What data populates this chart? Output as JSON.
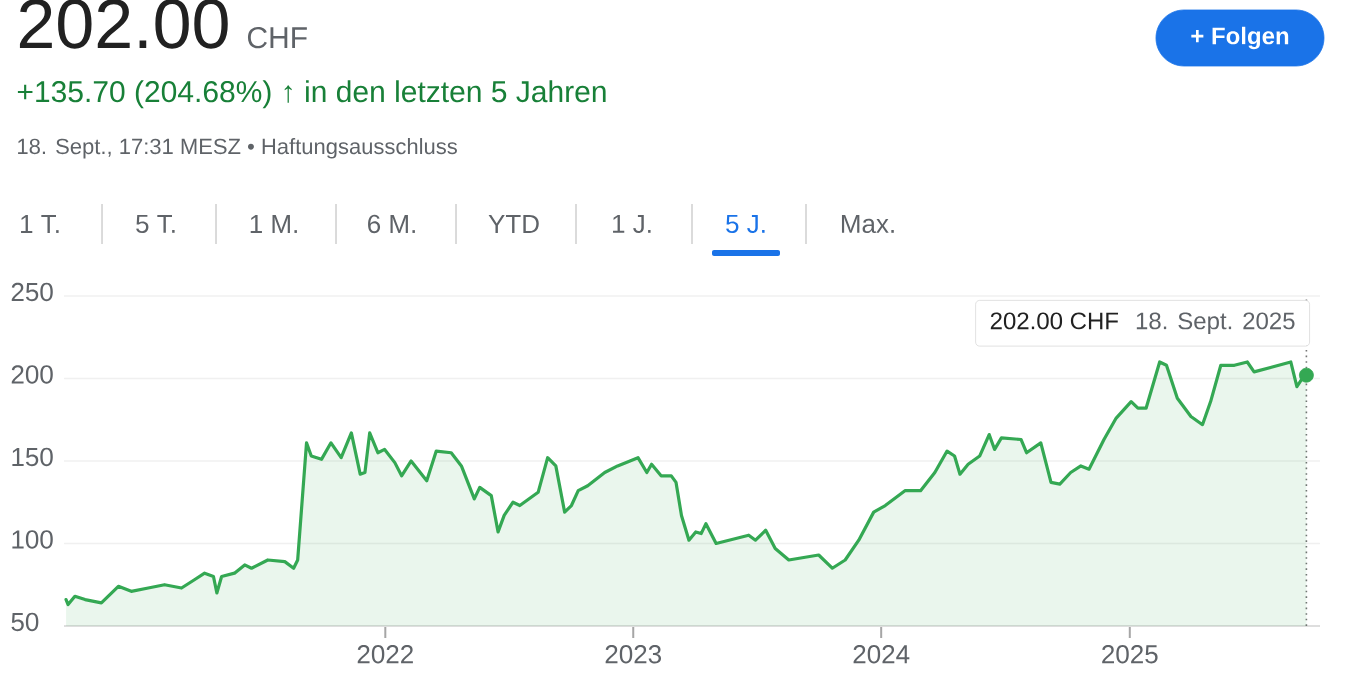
{
  "chart_data": {
    "type": "area",
    "title": "202.00",
    "subtitle": "+135.70 (204.68%) ↑ in den letzten 5 Jahren",
    "annotations": [
      "CHF",
      "18. Sept., 17:31 MESZ • Haftungsausschluss",
      "+ Folgen",
      "1 T.",
      "5 T.",
      "1 M.",
      "6 M.",
      "YTD",
      "1 J.",
      "5 J.",
      "Max.",
      "202.00 CHF",
      "18. Sept. 2025"
    ],
    "series": [
      {
        "color": "#34a853",
        "x": [
          "2020-09-18",
          "2020-09-21",
          "2020-10-01",
          "2020-10-16",
          "2020-11-09",
          "2020-12-04",
          "2020-12-23",
          "2021-01-17",
          "2021-02-10",
          "2021-03-07",
          "2021-03-26",
          "2021-04-10",
          "2021-04-23",
          "2021-04-28",
          "2021-05-05",
          "2021-05-24",
          "2021-06-08",
          "2021-06-18",
          "2021-07-12",
          "2021-08-06",
          "2021-08-19",
          "2021-08-25",
          "2021-09-07",
          "2021-09-14",
          "2021-09-29",
          "2021-10-13",
          "2021-10-28",
          "2021-11-12",
          "2021-11-25",
          "2021-12-02",
          "2021-12-09",
          "2021-12-21",
          "2021-12-31",
          "2022-01-15",
          "2022-01-25",
          "2022-02-08",
          "2022-03-03",
          "2022-03-17",
          "2022-04-08",
          "2022-04-23",
          "2022-05-12",
          "2022-05-20",
          "2022-06-06",
          "2022-06-16",
          "2022-06-25",
          "2022-07-08",
          "2022-07-18",
          "2022-08-14",
          "2022-08-28",
          "2022-09-09",
          "2022-09-22",
          "2022-10-02",
          "2022-10-12",
          "2022-10-26",
          "2022-11-20",
          "2022-12-09",
          "2023-01-08",
          "2023-01-21",
          "2023-01-28",
          "2023-02-11",
          "2023-02-26",
          "2023-03-05",
          "2023-03-13",
          "2023-03-24",
          "2023-04-03",
          "2023-04-11",
          "2023-04-18",
          "2023-05-03",
          "2023-06-20",
          "2023-06-30",
          "2023-07-15",
          "2023-07-29",
          "2023-08-18",
          "2023-10-01",
          "2023-10-21",
          "2023-11-09",
          "2023-11-29",
          "2023-12-21",
          "2024-01-07",
          "2024-02-05",
          "2024-02-28",
          "2024-03-20",
          "2024-04-07",
          "2024-04-18",
          "2024-04-26",
          "2024-05-08",
          "2024-05-25",
          "2024-06-08",
          "2024-06-16",
          "2024-06-26",
          "2024-07-25",
          "2024-08-02",
          "2024-08-23",
          "2024-09-07",
          "2024-09-20",
          "2024-10-06",
          "2024-10-21",
          "2024-11-02",
          "2024-11-24",
          "2024-12-12",
          "2025-01-03",
          "2025-01-13",
          "2025-01-25",
          "2025-02-14",
          "2025-02-24",
          "2025-03-12",
          "2025-04-01",
          "2025-04-18",
          "2025-04-30",
          "2025-05-15",
          "2025-06-04",
          "2025-06-23",
          "2025-07-03",
          "2025-08-26",
          "2025-09-04",
          "2025-09-12",
          "2025-09-18"
        ],
        "values": [
          66,
          63,
          68,
          66,
          64,
          74,
          71,
          73,
          75,
          73,
          78,
          82,
          80,
          70,
          80,
          82,
          87,
          85,
          90,
          89,
          85,
          90,
          161,
          153,
          151,
          161,
          152,
          167,
          142,
          143,
          167,
          155,
          157,
          149,
          141,
          150,
          138,
          156,
          155,
          147,
          127,
          134,
          129,
          107,
          117,
          125,
          123,
          131,
          152,
          147,
          119,
          123,
          132,
          135,
          143,
          147,
          152,
          143,
          148,
          141,
          141,
          137,
          117,
          102,
          107,
          106,
          112,
          100,
          105,
          102,
          108,
          97,
          90,
          93,
          85,
          90,
          102,
          119,
          123,
          132,
          132,
          143,
          156,
          153,
          142,
          148,
          153,
          166,
          157,
          164,
          163,
          155,
          161,
          137,
          136,
          143,
          147,
          145,
          163,
          176,
          186,
          182,
          182,
          210,
          208,
          188,
          177,
          172,
          186,
          208,
          208,
          210,
          204,
          210,
          195,
          200,
          202
        ]
      },
      {
        "type": "scatter",
        "color": "#34a853",
        "x": [
          "2025-09-18"
        ],
        "values": [
          202
        ]
      }
    ],
    "xlim": [
      "2020-09-15",
      "2025-10-08"
    ],
    "xticks": [
      {
        "value": "2022-01-01",
        "label": "2022"
      },
      {
        "value": "2023-01-01",
        "label": "2023"
      },
      {
        "value": "2024-01-01",
        "label": "2024"
      },
      {
        "value": "2025-01-01",
        "label": "2025"
      }
    ],
    "ylim": [
      50,
      250
    ],
    "yticks": [
      50,
      100,
      150,
      200,
      250
    ],
    "grid": "y",
    "ref_lines": [
      {
        "axis": "x",
        "value": "2025-09-18",
        "color": "#757575",
        "line_style": "dotted"
      }
    ]
  }
}
